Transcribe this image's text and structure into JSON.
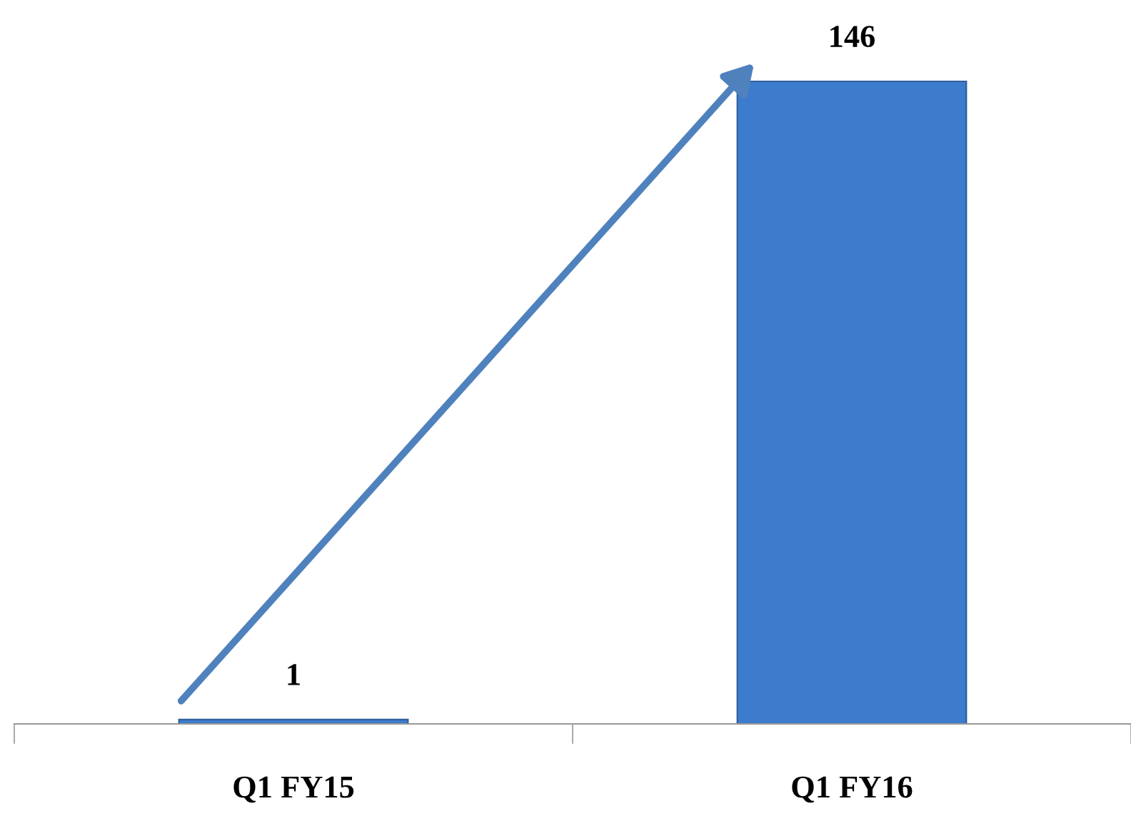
{
  "chart_data": {
    "type": "bar",
    "categories": [
      "Q1 FY15",
      "Q1 FY16"
    ],
    "values": [
      1,
      146
    ],
    "color": "#3d7ccc",
    "data_labels": true,
    "grid": false,
    "legend": false
  }
}
